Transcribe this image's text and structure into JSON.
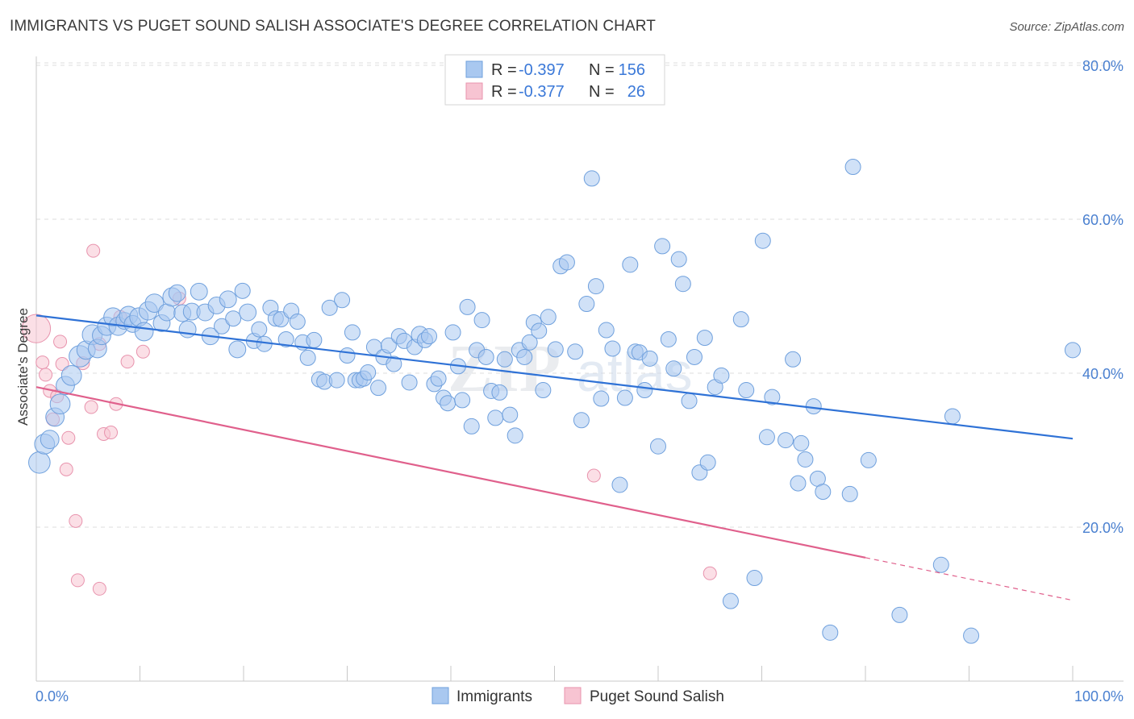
{
  "title": "IMMIGRANTS VS PUGET SOUND SALISH ASSOCIATE'S DEGREE CORRELATION CHART",
  "source": "Source: ZipAtlas.com",
  "watermark": "ZIPatlas",
  "colors": {
    "immigrants_fill": "#a9c8f0",
    "immigrants_stroke": "#6fa0dd",
    "immigrants_line": "#2f72d6",
    "salish_fill": "#f7c4d2",
    "salish_stroke": "#e893ad",
    "salish_line": "#e0608c",
    "tick_text": "#4a80d0",
    "grid": "#dddddd"
  },
  "legend": {
    "rows": [
      {
        "r_label": "R =",
        "r_value": "-0.397",
        "n_label": "N =",
        "n_value": "156"
      },
      {
        "r_label": "R =",
        "r_value": "-0.377",
        "n_label": "N =",
        "n_value": "26"
      }
    ]
  },
  "bottom_legend": [
    "Immigrants",
    "Puget Sound Salish"
  ],
  "chart_data": {
    "type": "scatter",
    "title": "IMMIGRANTS VS PUGET SOUND SALISH ASSOCIATE'S DEGREE CORRELATION CHART",
    "xlabel": "",
    "ylabel": "Associate's Degree",
    "xlim": [
      0,
      100
    ],
    "ylim": [
      0,
      83
    ],
    "x_tick_labels": [
      "0.0%",
      "100.0%"
    ],
    "y_ticks": [
      20,
      40,
      60,
      80
    ],
    "y_tick_labels": [
      "20.0%",
      "40.0%",
      "60.0%",
      "80.0%"
    ],
    "grid": "horizontal dashed",
    "legend_position": "top-center",
    "series": [
      {
        "name": "Immigrants",
        "r": -0.397,
        "n": 156,
        "trend": {
          "x0": 0,
          "y0": 47.5,
          "x1": 100,
          "y1": 31.5
        },
        "points": [
          [
            0.3,
            28.4,
            1.4
          ],
          [
            0.8,
            30.8,
            1.3
          ],
          [
            1.3,
            31.4,
            1.2
          ],
          [
            1.8,
            34.3,
            1.2
          ],
          [
            2.3,
            36.0,
            1.3
          ],
          [
            2.8,
            38.4,
            1.2
          ],
          [
            3.4,
            39.7,
            1.3
          ],
          [
            4.2,
            42.2,
            1.4
          ],
          [
            4.8,
            43.0,
            1.2
          ],
          [
            5.4,
            45.0,
            1.3
          ],
          [
            5.9,
            43.2,
            1.2
          ],
          [
            6.3,
            44.9,
            1.2
          ],
          [
            6.8,
            46.1,
            1.2
          ],
          [
            7.4,
            47.3,
            1.2
          ],
          [
            7.9,
            46.1,
            1.2
          ],
          [
            8.5,
            46.8,
            1.1
          ],
          [
            8.9,
            47.5,
            1.2
          ],
          [
            9.3,
            46.4,
            1.1
          ],
          [
            9.9,
            47.3,
            1.2
          ],
          [
            10.4,
            45.4,
            1.2
          ],
          [
            10.8,
            48.1,
            1.2
          ],
          [
            11.4,
            49.1,
            1.2
          ],
          [
            12.1,
            46.5,
            1.1
          ],
          [
            12.6,
            47.9,
            1.1
          ],
          [
            13.1,
            49.9,
            1.2
          ],
          [
            13.6,
            50.4,
            1.1
          ],
          [
            14.1,
            47.8,
            1.1
          ],
          [
            14.6,
            45.7,
            1.1
          ],
          [
            15.0,
            48.0,
            1.1
          ],
          [
            15.7,
            50.6,
            1.1
          ],
          [
            16.3,
            47.9,
            1.1
          ],
          [
            16.8,
            44.8,
            1.1
          ],
          [
            17.4,
            48.8,
            1.1
          ],
          [
            17.9,
            46.1,
            1.0
          ],
          [
            18.5,
            49.6,
            1.1
          ],
          [
            19.0,
            47.1,
            1.0
          ],
          [
            19.4,
            43.1,
            1.1
          ],
          [
            19.9,
            50.7,
            1.0
          ],
          [
            20.4,
            47.9,
            1.1
          ],
          [
            21.0,
            44.2,
            1.0
          ],
          [
            21.5,
            45.7,
            1.0
          ],
          [
            22.0,
            43.8,
            1.0
          ],
          [
            22.6,
            48.5,
            1.0
          ],
          [
            23.1,
            47.1,
            1.0
          ],
          [
            23.6,
            47.0,
            1.0
          ],
          [
            24.1,
            44.4,
            1.0
          ],
          [
            24.6,
            48.1,
            1.0
          ],
          [
            25.2,
            46.7,
            1.0
          ],
          [
            25.7,
            44.0,
            1.0
          ],
          [
            26.2,
            42.0,
            1.0
          ],
          [
            26.8,
            44.3,
            1.0
          ],
          [
            27.3,
            39.2,
            1.0
          ],
          [
            27.8,
            38.9,
            1.0
          ],
          [
            28.3,
            48.5,
            1.0
          ],
          [
            29.0,
            39.1,
            1.0
          ],
          [
            29.5,
            49.5,
            1.0
          ],
          [
            30.0,
            42.3,
            1.0
          ],
          [
            30.5,
            45.3,
            1.0
          ],
          [
            30.8,
            39.1,
            1.0
          ],
          [
            31.2,
            39.1,
            1.0
          ],
          [
            31.6,
            39.3,
            1.0
          ],
          [
            32.0,
            40.1,
            1.0
          ],
          [
            32.6,
            43.4,
            1.0
          ],
          [
            33.0,
            38.1,
            1.0
          ],
          [
            33.5,
            42.1,
            1.0
          ],
          [
            34.0,
            43.6,
            1.0
          ],
          [
            34.5,
            41.2,
            1.0
          ],
          [
            35.0,
            44.8,
            1.0
          ],
          [
            35.5,
            44.2,
            1.0
          ],
          [
            36.0,
            38.8,
            1.0
          ],
          [
            36.5,
            43.4,
            1.0
          ],
          [
            37.0,
            45.0,
            1.1
          ],
          [
            37.5,
            44.3,
            1.0
          ],
          [
            37.9,
            44.8,
            1.0
          ],
          [
            38.4,
            38.6,
            1.0
          ],
          [
            38.8,
            39.3,
            1.0
          ],
          [
            39.3,
            36.8,
            1.0
          ],
          [
            39.7,
            36.1,
            1.0
          ],
          [
            40.2,
            45.3,
            1.0
          ],
          [
            40.7,
            40.9,
            1.0
          ],
          [
            41.1,
            36.5,
            1.0
          ],
          [
            41.6,
            48.6,
            1.0
          ],
          [
            42.0,
            33.1,
            1.0
          ],
          [
            42.5,
            43.0,
            1.0
          ],
          [
            43.0,
            46.9,
            1.0
          ],
          [
            43.4,
            42.1,
            1.0
          ],
          [
            43.9,
            37.7,
            1.0
          ],
          [
            44.3,
            34.2,
            1.0
          ],
          [
            44.7,
            37.5,
            1.0
          ],
          [
            45.2,
            41.8,
            1.0
          ],
          [
            45.7,
            34.6,
            1.0
          ],
          [
            46.2,
            31.9,
            1.0
          ],
          [
            46.6,
            43.0,
            1.0
          ],
          [
            47.1,
            42.1,
            1.0
          ],
          [
            47.6,
            44.0,
            1.0
          ],
          [
            48.0,
            46.6,
            1.0
          ],
          [
            48.5,
            45.5,
            1.0
          ],
          [
            48.9,
            37.8,
            1.0
          ],
          [
            49.4,
            47.3,
            1.0
          ],
          [
            50.1,
            43.1,
            1.0
          ],
          [
            50.6,
            53.9,
            1.0
          ],
          [
            51.2,
            54.4,
            1.0
          ],
          [
            52.0,
            42.8,
            1.0
          ],
          [
            52.6,
            33.9,
            1.0
          ],
          [
            53.1,
            49.0,
            1.0
          ],
          [
            53.6,
            65.3,
            1.0
          ],
          [
            54.0,
            51.3,
            1.0
          ],
          [
            54.5,
            36.7,
            1.0
          ],
          [
            55.0,
            45.6,
            1.0
          ],
          [
            55.6,
            43.2,
            1.0
          ],
          [
            56.3,
            25.5,
            1.0
          ],
          [
            56.8,
            36.8,
            1.0
          ],
          [
            57.3,
            54.1,
            1.0
          ],
          [
            57.8,
            42.8,
            1.0
          ],
          [
            58.2,
            42.7,
            1.0
          ],
          [
            58.7,
            37.8,
            1.0
          ],
          [
            59.2,
            41.9,
            1.0
          ],
          [
            60.0,
            30.5,
            1.0
          ],
          [
            60.4,
            56.5,
            1.0
          ],
          [
            61.0,
            44.4,
            1.0
          ],
          [
            61.5,
            40.6,
            1.0
          ],
          [
            62.0,
            54.8,
            1.0
          ],
          [
            62.4,
            51.6,
            1.0
          ],
          [
            63.0,
            36.4,
            1.0
          ],
          [
            63.5,
            42.1,
            1.0
          ],
          [
            64.0,
            27.1,
            1.0
          ],
          [
            64.5,
            44.6,
            1.0
          ],
          [
            64.8,
            28.4,
            1.0
          ],
          [
            65.5,
            38.2,
            1.0
          ],
          [
            66.1,
            39.7,
            1.0
          ],
          [
            67.0,
            10.4,
            1.0
          ],
          [
            68.0,
            47.0,
            1.0
          ],
          [
            68.5,
            37.8,
            1.0
          ],
          [
            69.3,
            13.4,
            1.0
          ],
          [
            70.1,
            57.2,
            1.0
          ],
          [
            70.5,
            31.7,
            1.0
          ],
          [
            71.0,
            36.9,
            1.0
          ],
          [
            72.3,
            31.3,
            1.0
          ],
          [
            73.0,
            41.8,
            1.0
          ],
          [
            73.5,
            25.7,
            1.0
          ],
          [
            73.8,
            30.9,
            1.0
          ],
          [
            74.2,
            28.8,
            1.0
          ],
          [
            75.0,
            35.7,
            1.0
          ],
          [
            75.4,
            26.3,
            1.0
          ],
          [
            75.9,
            24.6,
            1.0
          ],
          [
            76.6,
            6.3,
            1.0
          ],
          [
            78.5,
            24.3,
            1.0
          ],
          [
            78.8,
            66.8,
            1.0
          ],
          [
            80.3,
            28.7,
            1.0
          ],
          [
            83.3,
            8.6,
            1.0
          ],
          [
            87.3,
            15.1,
            1.0
          ],
          [
            88.4,
            34.4,
            1.0
          ],
          [
            90.2,
            5.9,
            1.0
          ],
          [
            100.0,
            43.0,
            1.0
          ]
        ]
      },
      {
        "name": "Puget Sound Salish",
        "r": -0.377,
        "n": 26,
        "trend": {
          "x0": 0,
          "y0": 38.2,
          "x1": 100,
          "y1": 10.5,
          "solid_until_x": 80
        },
        "points": [
          [
            0.0,
            45.8,
            2.2
          ],
          [
            0.6,
            41.4,
            1.0
          ],
          [
            0.9,
            39.8,
            1.0
          ],
          [
            1.3,
            37.7,
            1.0
          ],
          [
            1.6,
            34.0,
            1.0
          ],
          [
            2.0,
            37.0,
            1.0
          ],
          [
            2.3,
            44.1,
            1.0
          ],
          [
            2.5,
            41.2,
            1.0
          ],
          [
            2.9,
            27.5,
            1.0
          ],
          [
            3.1,
            31.6,
            1.0
          ],
          [
            3.8,
            20.8,
            1.0
          ],
          [
            4.0,
            13.1,
            1.0
          ],
          [
            4.5,
            41.3,
            1.0
          ],
          [
            5.3,
            35.6,
            1.0
          ],
          [
            5.5,
            55.9,
            1.0
          ],
          [
            6.1,
            43.8,
            1.0
          ],
          [
            6.1,
            12.0,
            1.0
          ],
          [
            6.5,
            32.1,
            1.0
          ],
          [
            7.2,
            32.3,
            1.0
          ],
          [
            7.7,
            36.0,
            1.0
          ],
          [
            8.1,
            47.3,
            1.0
          ],
          [
            8.8,
            41.5,
            1.0
          ],
          [
            10.3,
            42.8,
            1.0
          ],
          [
            13.8,
            49.7,
            1.0
          ],
          [
            53.8,
            26.7,
            1.0
          ],
          [
            65.0,
            14.0,
            1.0
          ]
        ]
      }
    ]
  }
}
